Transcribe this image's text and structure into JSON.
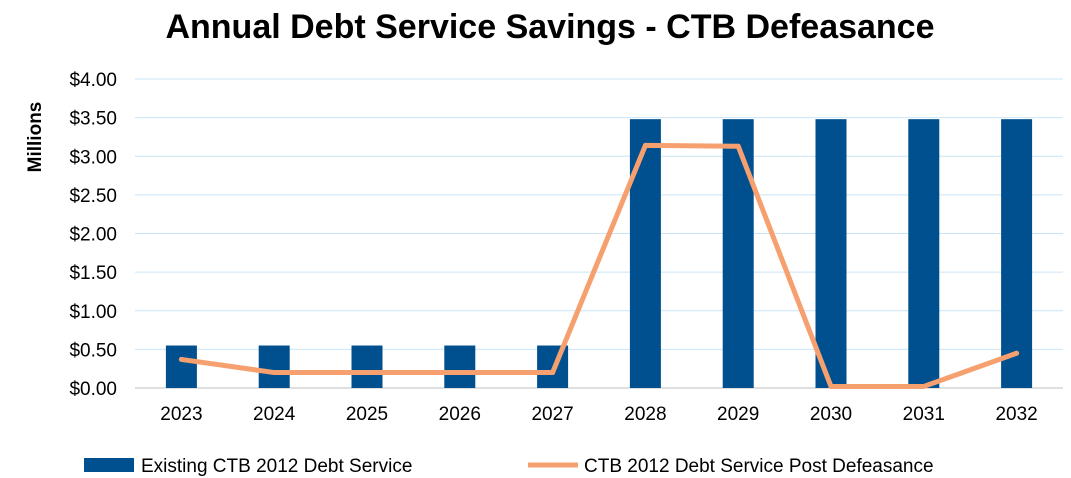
{
  "chart_data": {
    "type": "bar",
    "title": "Annual Debt Service Savings - CTB Defeasance",
    "xlabel": "",
    "ylabel": "Millions",
    "categories": [
      "2023",
      "2024",
      "2025",
      "2026",
      "2027",
      "2028",
      "2029",
      "2030",
      "2031",
      "2032"
    ],
    "ylim": [
      0,
      4
    ],
    "yticks": [
      "$0.00",
      "$0.50",
      "$1.00",
      "$1.50",
      "$2.00",
      "$2.50",
      "$3.00",
      "$3.50",
      "$4.00"
    ],
    "grid": true,
    "legend_position": "bottom",
    "series": [
      {
        "name": "Existing CTB 2012 Debt Service",
        "kind": "bar",
        "color": "#00508F",
        "values": [
          0.55,
          0.55,
          0.55,
          0.55,
          0.55,
          3.48,
          3.48,
          3.48,
          3.48,
          3.48
        ]
      },
      {
        "name": "CTB 2012 Debt Service Post Defeasance",
        "kind": "line",
        "color": "#F7A06F",
        "values": [
          0.37,
          0.2,
          0.2,
          0.2,
          0.2,
          3.14,
          3.13,
          0.02,
          0.02,
          0.45
        ]
      }
    ]
  }
}
